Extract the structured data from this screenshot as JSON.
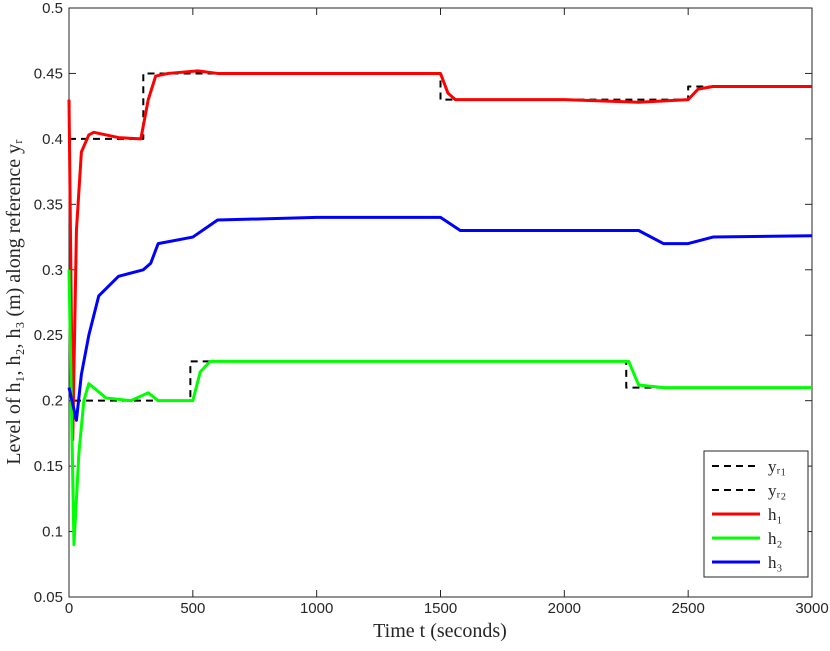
{
  "chart_data": {
    "type": "line",
    "xlabel": "Time t (seconds)",
    "ylabel": "Level of h₁, h₂, h₃ (m) along reference yᵣ",
    "xlim": [
      0,
      3000
    ],
    "xticks": [
      0,
      500,
      1000,
      1500,
      2000,
      2500,
      3000
    ],
    "ylim": [
      0.05,
      0.5
    ],
    "yticks": [
      0.05,
      0.1,
      0.15,
      0.2,
      0.25,
      0.3,
      0.35,
      0.4,
      0.45,
      0.5
    ],
    "grid": false,
    "legend": "lower right",
    "series": [
      {
        "name": "yᵣ₁",
        "color": "#000000",
        "dashed": true,
        "x": [
          0,
          300,
          300,
          1500,
          1500,
          2500,
          2500,
          3000
        ],
        "values": [
          0.4,
          0.4,
          0.45,
          0.45,
          0.43,
          0.43,
          0.44,
          0.44
        ]
      },
      {
        "name": "yᵣ₂",
        "color": "#000000",
        "dashed": true,
        "x": [
          20,
          490,
          490,
          2250,
          2250,
          3000
        ],
        "values": [
          0.2,
          0.2,
          0.23,
          0.23,
          0.21,
          0.21
        ]
      },
      {
        "name": "h₁",
        "color": "#ff0000",
        "dashed": false,
        "x": [
          0,
          15,
          30,
          50,
          80,
          100,
          200,
          290,
          320,
          350,
          400,
          520,
          600,
          1000,
          1500,
          1530,
          1560,
          2000,
          2300,
          2500,
          2540,
          2600,
          3000
        ],
        "values": [
          0.43,
          0.17,
          0.33,
          0.39,
          0.403,
          0.405,
          0.401,
          0.4,
          0.43,
          0.448,
          0.45,
          0.452,
          0.45,
          0.45,
          0.45,
          0.435,
          0.43,
          0.43,
          0.428,
          0.43,
          0.438,
          0.44,
          0.44
        ]
      },
      {
        "name": "h₂",
        "color": "#00ff00",
        "dashed": false,
        "x": [
          0,
          20,
          40,
          60,
          80,
          150,
          250,
          320,
          360,
          500,
          530,
          570,
          1500,
          2000,
          2260,
          2300,
          2400,
          3000
        ],
        "values": [
          0.3,
          0.09,
          0.16,
          0.2,
          0.213,
          0.202,
          0.2,
          0.206,
          0.2,
          0.2,
          0.222,
          0.23,
          0.23,
          0.23,
          0.23,
          0.212,
          0.21,
          0.21
        ]
      },
      {
        "name": "h₃",
        "color": "#0000ff",
        "dashed": false,
        "x": [
          0,
          30,
          50,
          80,
          120,
          200,
          300,
          330,
          360,
          500,
          600,
          1000,
          1500,
          1580,
          2000,
          2300,
          2400,
          2500,
          2600,
          3000
        ],
        "values": [
          0.21,
          0.185,
          0.22,
          0.25,
          0.28,
          0.295,
          0.3,
          0.305,
          0.32,
          0.325,
          0.338,
          0.34,
          0.34,
          0.33,
          0.33,
          0.33,
          0.32,
          0.32,
          0.325,
          0.326
        ]
      }
    ]
  }
}
